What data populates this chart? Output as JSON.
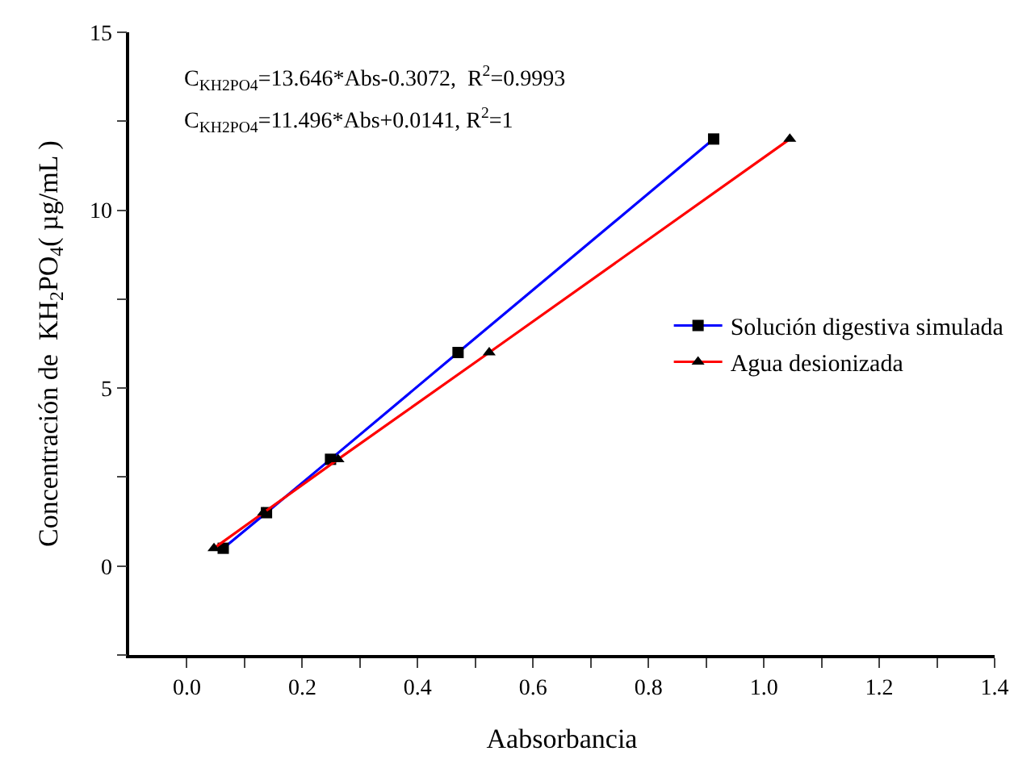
{
  "chart_data": {
    "type": "line",
    "xlabel": "Aabsorbancia",
    "ylabel": "Concentración de  KH$_{2}$PO$_{4}$( µg/mL )",
    "xlim": [
      -0.1,
      1.4
    ],
    "ylim": [
      -2.5,
      15
    ],
    "xticks": [
      "0.0",
      {
        "value": 0.1,
        "label": null
      },
      {
        "value": 0.2,
        "label": "0.2"
      },
      {
        "value": 0.3,
        "label": null
      },
      {
        "value": 0.4,
        "label": "0.4"
      },
      {
        "value": 0.5,
        "label": null
      },
      {
        "value": 0.6,
        "label": "0.6"
      },
      {
        "value": 0.7,
        "label": null
      },
      {
        "value": 0.8,
        "label": "0.8"
      },
      {
        "value": 0.9,
        "label": null
      },
      {
        "value": 1.0,
        "label": "1.0"
      },
      {
        "value": 1.1,
        "label": null
      },
      {
        "value": 1.2,
        "label": "1.2"
      },
      {
        "value": 1.3,
        "label": null
      },
      {
        "value": 1.4,
        "label": "1.4"
      }
    ],
    "yticks": [
      {
        "value": -2.5,
        "label": null
      },
      0,
      {
        "value": 2.5,
        "label": null
      },
      5,
      {
        "value": 7.5,
        "label": null
      },
      10,
      {
        "value": 12.5,
        "label": null
      },
      15
    ],
    "legend": "right",
    "line_style": "solid",
    "series": [
      {
        "name": "Solución digestiva simulada",
        "color": "#0000ff",
        "marker": "square",
        "x": [
          0.063,
          0.138,
          0.249,
          0.47,
          0.913
        ],
        "values": [
          0.5,
          1.5,
          3.0,
          6.0,
          12.0
        ]
      },
      {
        "name": "Agua desionizada",
        "color": "#ff0000",
        "marker": "triangle",
        "x": [
          0.047,
          0.133,
          0.262,
          0.524,
          1.045
        ],
        "values": [
          0.5,
          1.5,
          3.0,
          6.0,
          12.0
        ]
      }
    ],
    "annotations": [
      "C$_{KH2PO4}$=13.646*Abs-0.3072,  R$^{2}$=0.9993",
      "C$_{KH2PO4}$=11.496*Abs+0.0141, R$^{2}$=1"
    ]
  }
}
